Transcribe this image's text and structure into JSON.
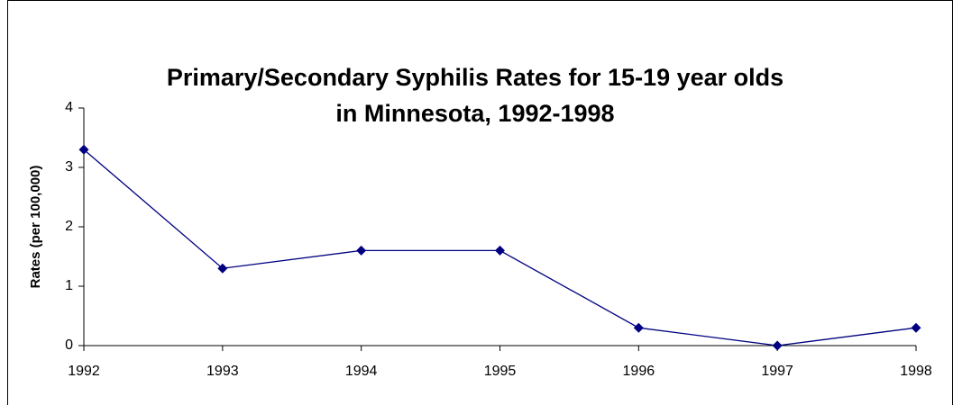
{
  "chart_data": {
    "type": "line",
    "title": [
      "Primary/Secondary Syphilis Rates for 15-19 year olds",
      "in Minnesota, 1992-1998"
    ],
    "ylabel": "Rates (per 100,000)",
    "x": [
      1992,
      1993,
      1994,
      1995,
      1996,
      1997,
      1998
    ],
    "xlim": [
      1992,
      1998
    ],
    "xticks": [
      1992,
      1993,
      1994,
      1995,
      1996,
      1997,
      1998
    ],
    "ylim": [
      0,
      4
    ],
    "yticks": [
      0,
      1,
      2,
      3,
      4
    ],
    "series": [
      {
        "name": "Rates",
        "color": "#000080",
        "values": [
          3.3,
          1.3,
          1.6,
          1.6,
          0.3,
          0,
          0.3
        ]
      }
    ],
    "grid": false
  }
}
